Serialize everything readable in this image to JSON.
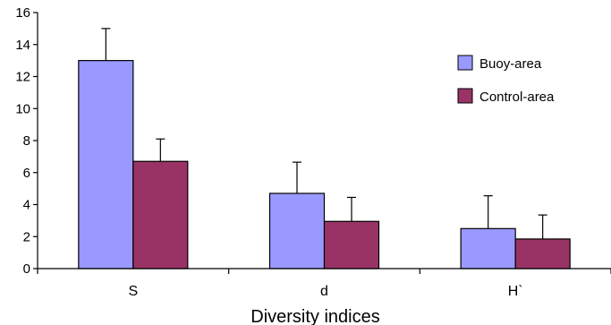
{
  "chart_data": {
    "type": "bar",
    "categories": [
      "S",
      "d",
      "H`"
    ],
    "series": [
      {
        "name": "Buoy-area",
        "color": "#9999FF",
        "values": [
          13.0,
          4.7,
          2.5
        ],
        "error": [
          2.0,
          1.95,
          2.05
        ]
      },
      {
        "name": "Control-area",
        "color": "#993366",
        "values": [
          6.7,
          2.95,
          1.85
        ],
        "error": [
          1.4,
          1.5,
          1.5
        ]
      }
    ],
    "title": "",
    "xlabel": "Diversity indices",
    "ylabel": "",
    "ylim": [
      0,
      16
    ],
    "yticks": [
      "0",
      "2",
      "4",
      "6",
      "8",
      "10",
      "12",
      "14",
      "16"
    ],
    "grid": false,
    "legend_position": "top-right"
  }
}
